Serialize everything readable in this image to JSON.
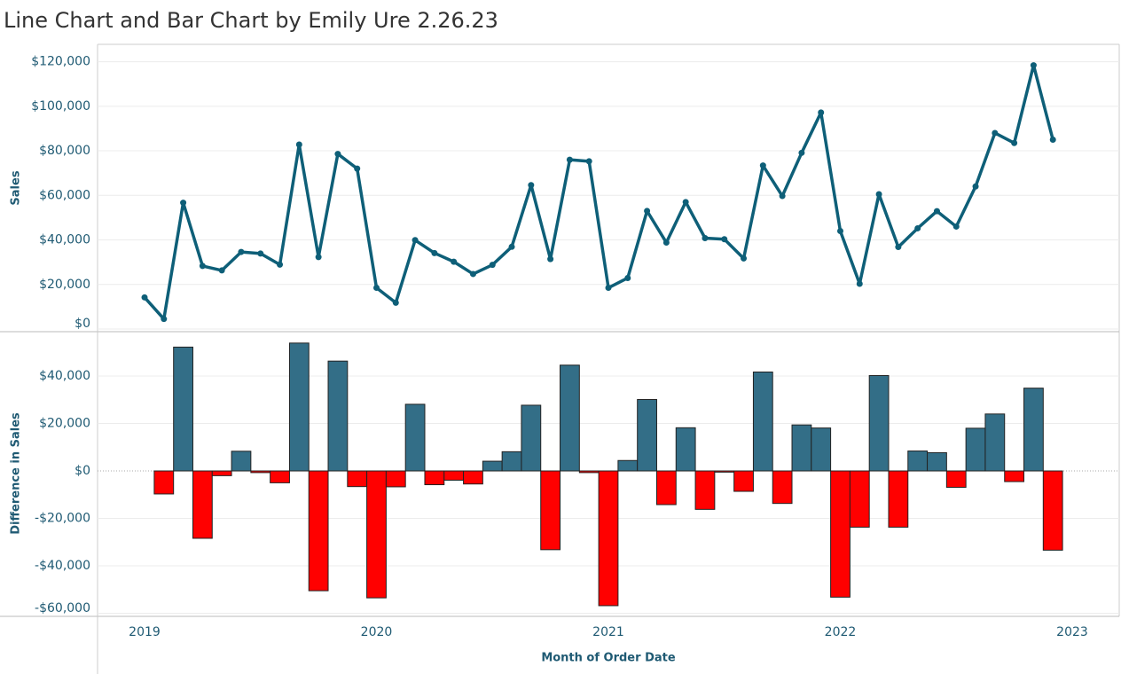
{
  "chart_data": [
    {
      "type": "line",
      "title": "Line Chart and Bar Chart by Emily Ure 2.26.23",
      "ylabel": "Sales",
      "color": "#0e5f78",
      "x": [
        "2019-01",
        "2019-02",
        "2019-03",
        "2019-04",
        "2019-05",
        "2019-06",
        "2019-07",
        "2019-08",
        "2019-09",
        "2019-10",
        "2019-11",
        "2019-12",
        "2020-01",
        "2020-02",
        "2020-03",
        "2020-04",
        "2020-05",
        "2020-06",
        "2020-07",
        "2020-08",
        "2020-09",
        "2020-10",
        "2020-11",
        "2020-12",
        "2021-01",
        "2021-02",
        "2021-03",
        "2021-04",
        "2021-05",
        "2021-06",
        "2021-07",
        "2021-08",
        "2021-09",
        "2021-10",
        "2021-11",
        "2021-12",
        "2022-01",
        "2022-02",
        "2022-03",
        "2022-04",
        "2022-05",
        "2022-06",
        "2022-07",
        "2022-08",
        "2022-09",
        "2022-10",
        "2022-11",
        "2022-12"
      ],
      "values": [
        14200,
        4500,
        56700,
        28300,
        26300,
        34600,
        33900,
        28900,
        82800,
        32300,
        78600,
        72000,
        18500,
        11800,
        39900,
        34100,
        30200,
        24700,
        28800,
        36900,
        64600,
        31400,
        76000,
        75300,
        18500,
        22900,
        53000,
        38800,
        57000,
        40800,
        40300,
        31700,
        73400,
        59700,
        79100,
        97200,
        44000,
        20300,
        60500,
        36800,
        45200,
        52900,
        46000,
        64000,
        88000,
        83500,
        118400,
        85000
      ],
      "ylim": [
        -1200,
        127400
      ],
      "yticks": [
        {
          "value": 0,
          "label": "$0"
        },
        {
          "value": 20000,
          "label": "$20,000"
        },
        {
          "value": 40000,
          "label": "$40,000"
        },
        {
          "value": 60000,
          "label": "$60,000"
        },
        {
          "value": 80000,
          "label": "$80,000"
        },
        {
          "value": 100000,
          "label": "$100,000"
        },
        {
          "value": 120000,
          "label": "$120,000"
        }
      ],
      "grid": true
    },
    {
      "type": "bar",
      "ylabel": "Difference in Sales",
      "xlabel": "Month of Order Date",
      "color": "#336e87",
      "negative_color": "#ff0000",
      "x": [
        "2019-01",
        "2019-02",
        "2019-03",
        "2019-04",
        "2019-05",
        "2019-06",
        "2019-07",
        "2019-08",
        "2019-09",
        "2019-10",
        "2019-11",
        "2019-12",
        "2020-01",
        "2020-02",
        "2020-03",
        "2020-04",
        "2020-05",
        "2020-06",
        "2020-07",
        "2020-08",
        "2020-09",
        "2020-10",
        "2020-11",
        "2020-12",
        "2021-01",
        "2021-02",
        "2021-03",
        "2021-04",
        "2021-05",
        "2021-06",
        "2021-07",
        "2021-08",
        "2021-09",
        "2021-10",
        "2021-11",
        "2021-12",
        "2022-01",
        "2022-02",
        "2022-03",
        "2022-04",
        "2022-05",
        "2022-06",
        "2022-07",
        "2022-08",
        "2022-09",
        "2022-10",
        "2022-11",
        "2022-12"
      ],
      "values": [
        null,
        -9700,
        52200,
        -28400,
        -2000,
        8300,
        -700,
        -5000,
        53900,
        -50500,
        46300,
        -6600,
        -53500,
        -6700,
        28100,
        -5800,
        -3900,
        -5500,
        4100,
        8100,
        27700,
        -33200,
        44600,
        -700,
        -56800,
        4400,
        30100,
        -14200,
        18200,
        -16200,
        -500,
        -8600,
        41700,
        -13700,
        19400,
        18100,
        -53200,
        -23700,
        40200,
        -23700,
        8400,
        7700,
        -6900,
        18000,
        24000,
        -4500,
        34900,
        -33400
      ],
      "ylim": [
        -61300,
        58700
      ],
      "yticks": [
        {
          "value": -60000,
          "label": "-$60,000"
        },
        {
          "value": -40000,
          "label": "-$40,000"
        },
        {
          "value": -20000,
          "label": "-$20,000"
        },
        {
          "value": 0,
          "label": "$0"
        },
        {
          "value": 20000,
          "label": "$20,000"
        },
        {
          "value": 40000,
          "label": "$40,000"
        }
      ],
      "xticks": [
        2019,
        2020,
        2021,
        2022,
        2023
      ],
      "grid": true
    }
  ]
}
